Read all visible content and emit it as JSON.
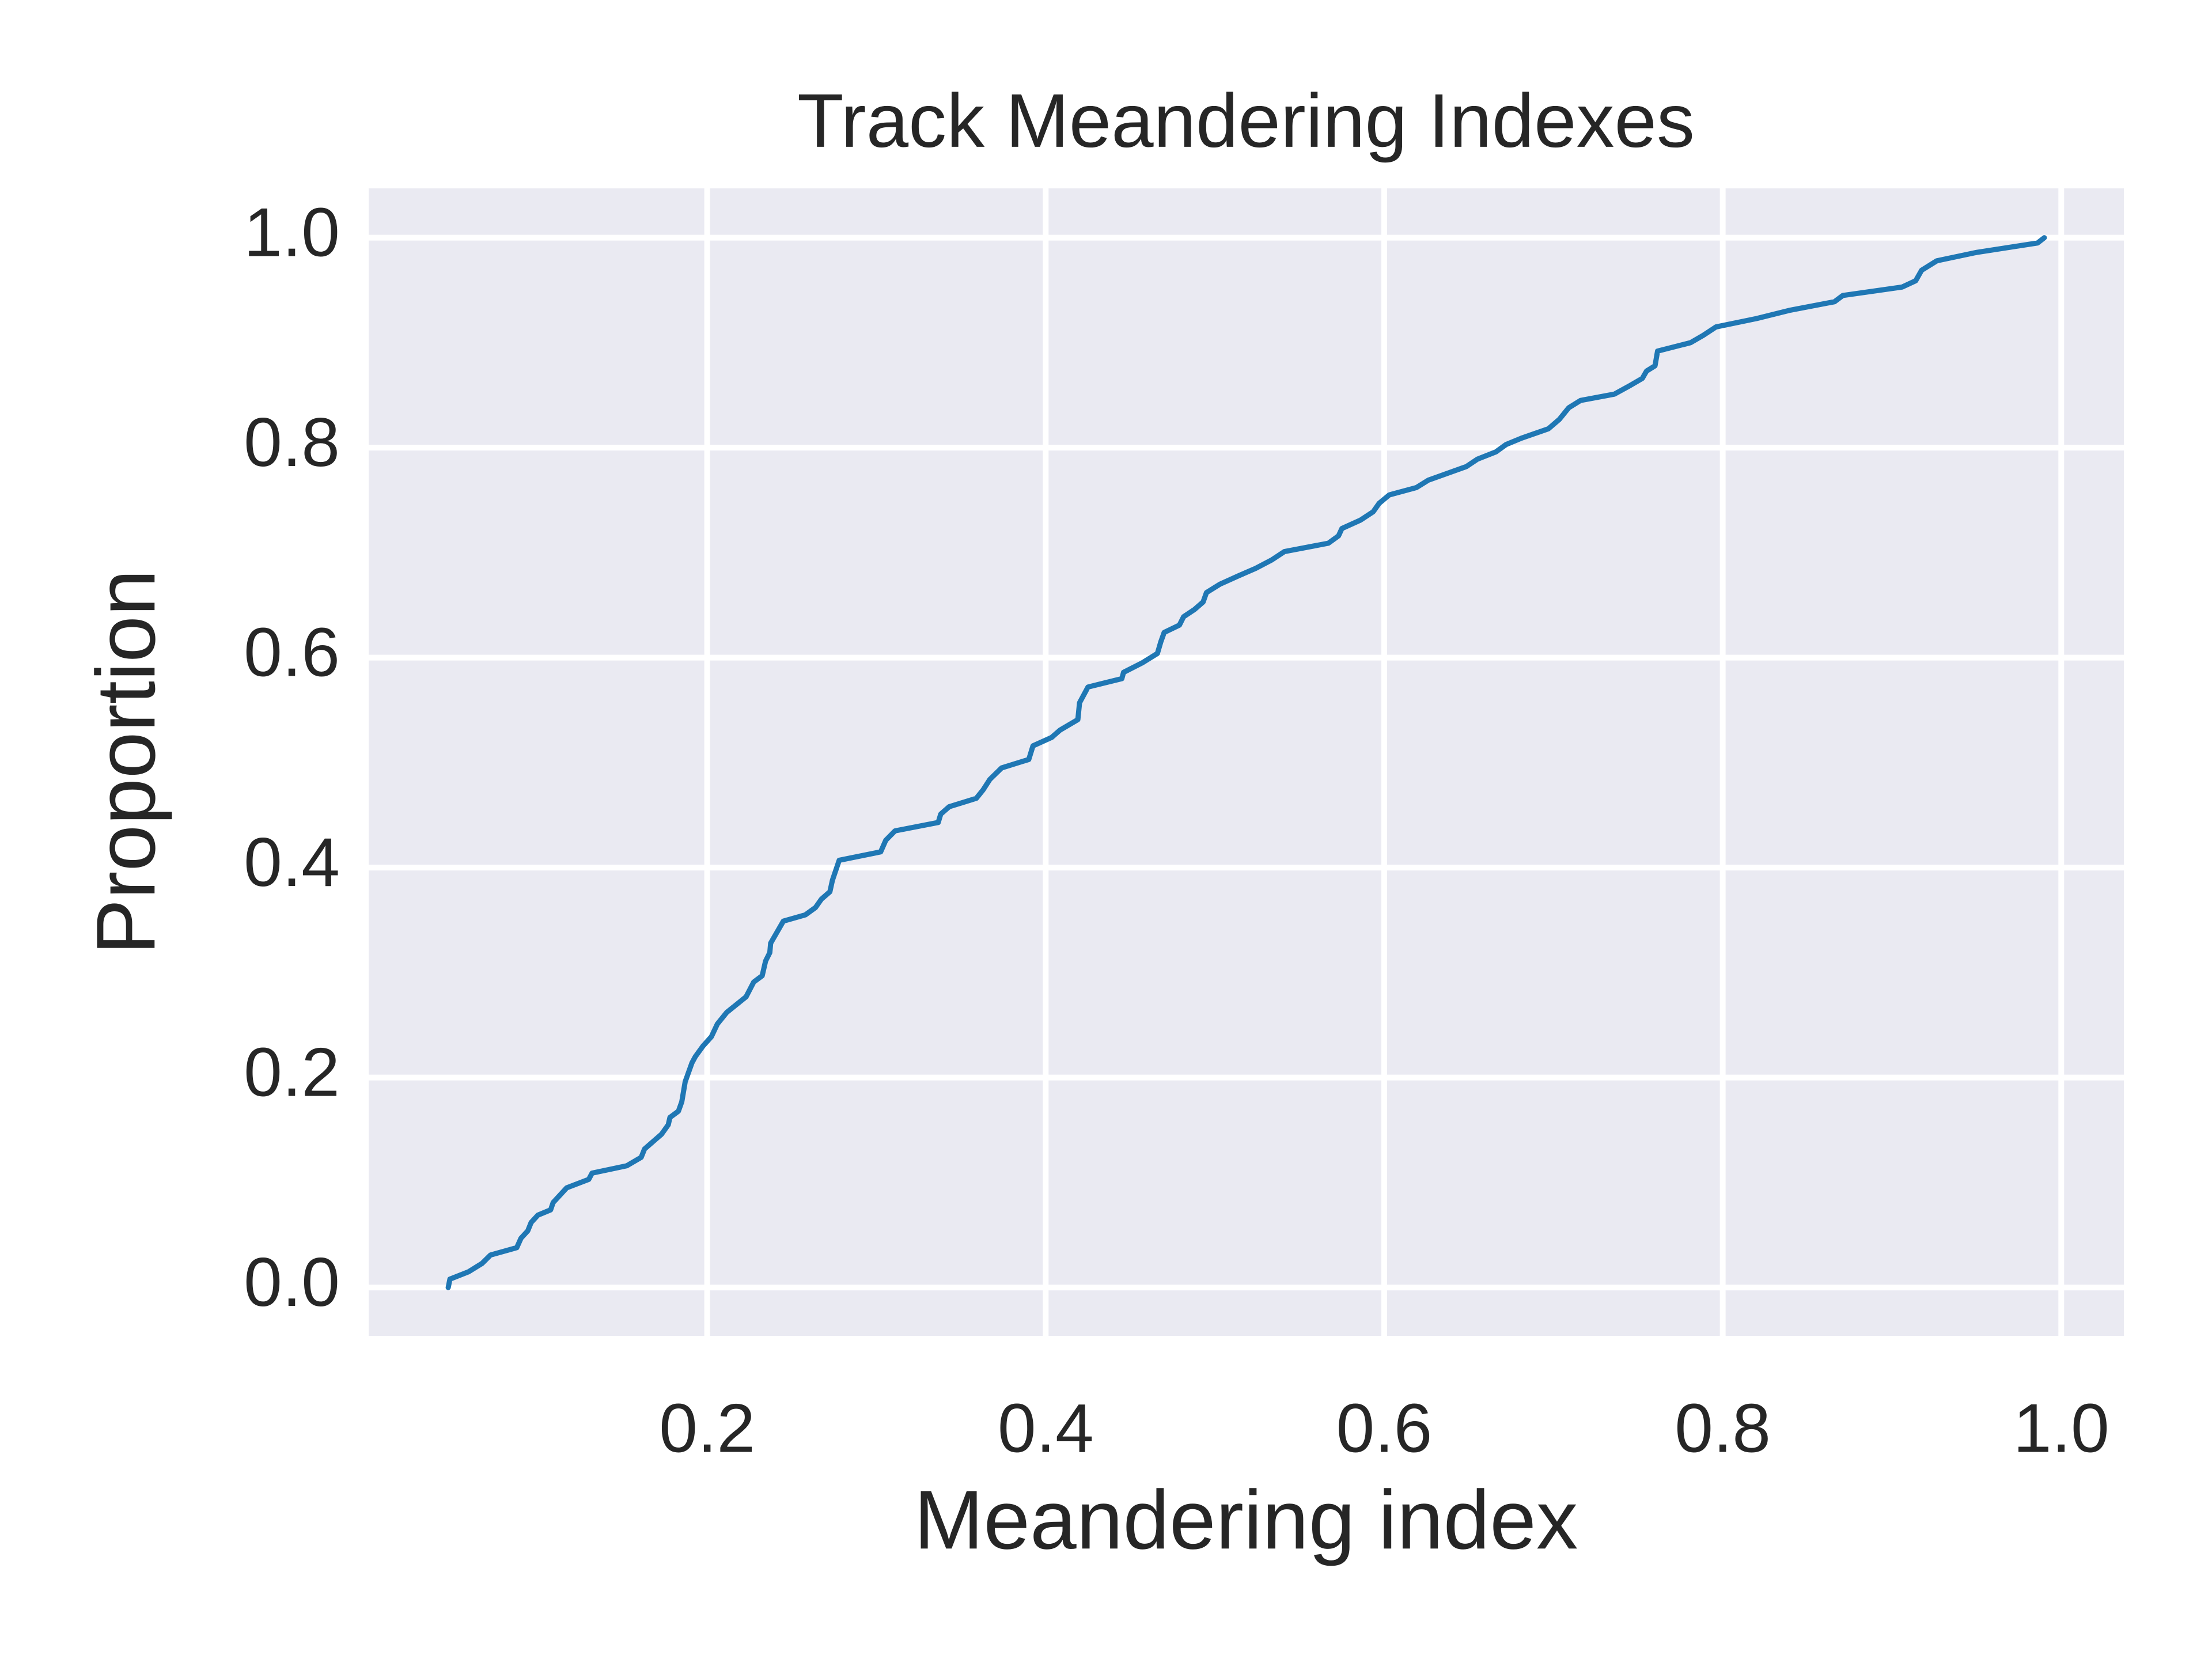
{
  "chart_data": {
    "type": "line",
    "title": "Track Meandering Indexes",
    "xlabel": "Meandering index",
    "ylabel": "Proportion",
    "x": [
      0.047,
      0.048,
      0.059,
      0.067,
      0.072,
      0.0875,
      0.09,
      0.094,
      0.096,
      0.1,
      0.1075,
      0.109,
      0.117,
      0.13,
      0.132,
      0.1525,
      0.161,
      0.163,
      0.173,
      0.177,
      0.178,
      0.183,
      0.185,
      0.187,
      0.191,
      0.193,
      0.1975,
      0.2025,
      0.206,
      0.2115,
      0.223,
      0.2275,
      0.2325,
      0.2345,
      0.237,
      0.2375,
      0.2425,
      0.245,
      0.258,
      0.264,
      0.2675,
      0.2725,
      0.274,
      0.278,
      0.3025,
      0.3055,
      0.311,
      0.3365,
      0.338,
      0.343,
      0.359,
      0.363,
      0.367,
      0.374,
      0.39,
      0.3925,
      0.4035,
      0.4085,
      0.419,
      0.42,
      0.425,
      0.445,
      0.446,
      0.457,
      0.466,
      0.468,
      0.47,
      0.479,
      0.4815,
      0.488,
      0.493,
      0.495,
      0.503,
      0.514,
      0.524,
      0.5335,
      0.541,
      0.567,
      0.573,
      0.575,
      0.586,
      0.5935,
      0.597,
      0.603,
      0.619,
      0.626,
      0.6485,
      0.655,
      0.666,
      0.672,
      0.681,
      0.697,
      0.7035,
      0.709,
      0.716,
      0.736,
      0.745,
      0.7525,
      0.755,
      0.76,
      0.7615,
      0.781,
      0.7885,
      0.796,
      0.82,
      0.84,
      0.866,
      0.871,
      0.906,
      0.914,
      0.9175,
      0.9265,
      0.95,
      0.986,
      0.99
    ],
    "series": [
      {
        "name": "Meandering index",
        "color": "#1f77b4",
        "values": [
          0.0,
          0.008,
          0.015,
          0.023,
          0.031,
          0.038,
          0.047,
          0.054,
          0.062,
          0.069,
          0.074,
          0.081,
          0.095,
          0.103,
          0.109,
          0.116,
          0.124,
          0.132,
          0.146,
          0.155,
          0.162,
          0.168,
          0.177,
          0.196,
          0.214,
          0.22,
          0.23,
          0.239,
          0.251,
          0.262,
          0.277,
          0.291,
          0.297,
          0.311,
          0.319,
          0.328,
          0.342,
          0.349,
          0.355,
          0.362,
          0.37,
          0.377,
          0.388,
          0.407,
          0.415,
          0.426,
          0.435,
          0.443,
          0.451,
          0.458,
          0.466,
          0.474,
          0.484,
          0.495,
          0.503,
          0.516,
          0.524,
          0.531,
          0.541,
          0.557,
          0.572,
          0.58,
          0.586,
          0.595,
          0.604,
          0.615,
          0.624,
          0.631,
          0.639,
          0.646,
          0.653,
          0.662,
          0.67,
          0.678,
          0.685,
          0.693,
          0.701,
          0.709,
          0.716,
          0.723,
          0.731,
          0.739,
          0.747,
          0.755,
          0.762,
          0.769,
          0.782,
          0.789,
          0.796,
          0.803,
          0.809,
          0.818,
          0.827,
          0.838,
          0.845,
          0.851,
          0.859,
          0.866,
          0.873,
          0.878,
          0.892,
          0.9,
          0.907,
          0.915,
          0.923,
          0.931,
          0.939,
          0.945,
          0.953,
          0.959,
          0.969,
          0.978,
          0.986,
          0.995,
          1.0
        ]
      }
    ],
    "xlim": [
      0.0,
      1.037
    ],
    "ylim": [
      -0.046,
      1.047
    ],
    "xticks": [
      0.2,
      0.4,
      0.6,
      0.8,
      {
        "value": 1.0,
        "label": "1.0"
      }
    ],
    "yticks": [
      {
        "value": 0.0,
        "label": "0.0"
      },
      0.2,
      0.4,
      0.6,
      0.8,
      {
        "value": 1.0,
        "label": "1.0"
      }
    ],
    "grid": true
  }
}
